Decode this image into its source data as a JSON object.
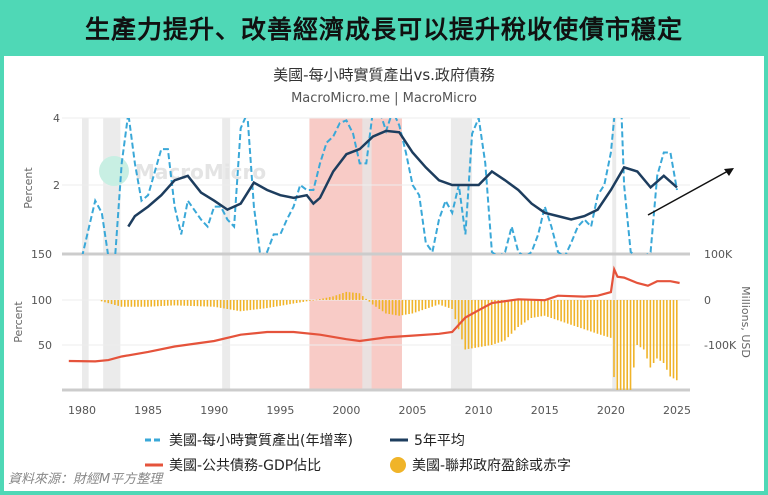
{
  "header": {
    "title": "生產力提升、改善經濟成長可以提升稅收使債市穩定"
  },
  "source": "資料來源：財經M平方整理",
  "watermark": "MacroMicro",
  "colors": {
    "background": "#4fd8b6",
    "productivity": "#3aa8d8",
    "avg5": "#1d3d5e",
    "debt": "#e5533b",
    "deficit": "#f0b429",
    "highlight": "#f4a9a0",
    "recession": "#e6e6e6"
  },
  "chart_data": [
    {
      "type": "line",
      "title": "美國-每小時實質產出vs.政府債務",
      "subtitle": "MacroMicro.me | MacroMicro",
      "ylabel": "Percent",
      "yscale": "log",
      "ylim": [
        1,
        4
      ],
      "yticks": [
        "4",
        "2"
      ],
      "series": [
        {
          "name": "美國-每小時實質產出(年增率)",
          "style": "dashed",
          "x": [
            1980,
            1981,
            1981.5,
            1982,
            1982.5,
            1983,
            1983.5,
            1984,
            1984.5,
            1985,
            1986,
            1986.5,
            1987,
            1987.5,
            1988,
            1989,
            1989.5,
            1990,
            1990.5,
            1991,
            1991.5,
            1992,
            1992.5,
            1993,
            1993.5,
            1994,
            1994.5,
            1995,
            1995.5,
            1996,
            1996.5,
            1997,
            1997.5,
            1998,
            1998.5,
            1999,
            1999.5,
            2000,
            2000.5,
            2001,
            2001.5,
            2002,
            2002.5,
            2003,
            2003.5,
            2004,
            2004.5,
            2005,
            2005.5,
            2006,
            2006.5,
            2007,
            2007.5,
            2008,
            2008.5,
            2009,
            2009.5,
            2010,
            2010.5,
            2011,
            2011.5,
            2012,
            2012.5,
            2013,
            2013.5,
            2014,
            2014.5,
            2015,
            2015.5,
            2016,
            2016.5,
            2017,
            2017.5,
            2018,
            2018.5,
            2019,
            2019.5,
            2020,
            2020.3,
            2020.8,
            2021,
            2021.5,
            2022,
            2022.5,
            2023,
            2023.5,
            2024,
            2024.5,
            2025
          ],
          "y": [
            0.8,
            1.7,
            1.5,
            0.8,
            0.9,
            2.5,
            4.2,
            2.5,
            1.7,
            1.8,
            2.9,
            2.9,
            1.6,
            1.2,
            1.7,
            1.4,
            1.3,
            1.6,
            1.6,
            1.4,
            1.3,
            3.6,
            4.2,
            1.6,
            0.9,
            1.0,
            1.2,
            1.2,
            1.4,
            1.6,
            2.0,
            1.9,
            1.9,
            2.5,
            3.1,
            3.3,
            3.8,
            3.9,
            3.4,
            2.5,
            2.5,
            4.3,
            4.5,
            3.5,
            4.5,
            3.7,
            2.8,
            2.0,
            1.8,
            1.1,
            1.0,
            1.4,
            1.7,
            1.5,
            2.0,
            1.2,
            3.4,
            4.0,
            2.5,
            1.0,
            0.6,
            1.0,
            1.3,
            1.0,
            0.8,
            1.0,
            1.2,
            1.6,
            1.3,
            1.0,
            0.8,
            1.1,
            1.3,
            1.4,
            1.3,
            1.8,
            2.0,
            2.8,
            4.5,
            4.2,
            2.0,
            1.0,
            0.5,
            0.5,
            1.0,
            2.2,
            2.8,
            2.8,
            1.9
          ]
        },
        {
          "name": "5年平均",
          "style": "solid",
          "x": [
            1983.5,
            1984,
            1985,
            1986,
            1987,
            1988,
            1989,
            1990,
            1991,
            1992,
            1993,
            1994,
            1995,
            1996,
            1997,
            1997.5,
            1998,
            1999,
            2000,
            2001,
            2002,
            2003,
            2004,
            2005,
            2006,
            2007,
            2008,
            2009,
            2010,
            2011,
            2012,
            2013,
            2014,
            2015,
            2016,
            2017,
            2018,
            2019,
            2020,
            2021,
            2022,
            2023,
            2024,
            2025
          ],
          "y": [
            1.3,
            1.45,
            1.6,
            1.8,
            2.1,
            2.2,
            1.85,
            1.7,
            1.55,
            1.65,
            2.05,
            1.9,
            1.8,
            1.75,
            1.8,
            1.65,
            1.75,
            2.3,
            2.75,
            2.9,
            3.3,
            3.5,
            3.45,
            2.8,
            2.4,
            2.1,
            2.0,
            2.0,
            2.0,
            2.3,
            2.1,
            1.9,
            1.65,
            1.5,
            1.45,
            1.4,
            1.45,
            1.55,
            1.9,
            2.4,
            2.3,
            1.95,
            2.2,
            1.95
          ]
        }
      ]
    },
    {
      "type": "line+bar",
      "ylabel": "Percent",
      "ylim": [
        0,
        150
      ],
      "yticks": [
        "150",
        "100",
        "50"
      ],
      "y2label": "Millions, USD",
      "y2ticks": [
        "100K",
        "0",
        "-100K"
      ],
      "y2lim": [
        -200000,
        100000
      ],
      "xticks": [
        "1980",
        "1985",
        "1990",
        "1995",
        "2000",
        "2005",
        "2010",
        "2015",
        "2020",
        "2025"
      ],
      "series": [
        {
          "name": "美國-公共債務-GDP佔比",
          "type": "line",
          "x": [
            1979,
            1981,
            1982,
            1983,
            1985,
            1987,
            1990,
            1992,
            1994,
            1996,
            1998,
            2000,
            2001,
            2003,
            2005,
            2007,
            2008,
            2009,
            2010,
            2011,
            2013,
            2015,
            2016,
            2018,
            2019,
            2020,
            2020.25,
            2020.5,
            2021,
            2022,
            2022.8,
            2023.5,
            2024.5,
            2025.2
          ],
          "y": [
            32,
            31.5,
            33,
            37,
            42,
            48,
            54,
            61,
            64,
            64,
            61,
            56,
            54,
            58,
            60,
            62,
            64,
            80,
            88,
            96,
            100,
            99,
            104,
            103,
            104,
            108,
            133,
            125,
            124,
            118,
            115,
            120,
            120,
            118
          ]
        },
        {
          "name": "美國-聯邦政府盈餘或赤字",
          "type": "bar",
          "x": [
            1981.5,
            1983,
            1985,
            1987,
            1990,
            1992,
            1994,
            1996,
            1997,
            1998,
            1999,
            2000,
            2001,
            2002,
            2003,
            2004,
            2005,
            2006,
            2007,
            2008,
            2009,
            2010,
            2011,
            2012,
            2013,
            2014,
            2015,
            2016,
            2017,
            2018,
            2019,
            2020.1,
            2020.3,
            2021.5,
            2022,
            2022.5,
            2023,
            2023.5,
            2024,
            2024.5,
            2025.1
          ],
          "y": [
            -3000,
            -15000,
            -15000,
            -12000,
            -15000,
            -25000,
            -18000,
            -8000,
            -3000,
            2000,
            8000,
            18000,
            15000,
            -10000,
            -30000,
            -35000,
            -30000,
            -20000,
            -10000,
            -20000,
            -110000,
            -105000,
            -100000,
            -90000,
            -60000,
            -40000,
            -35000,
            -45000,
            -55000,
            -65000,
            -75000,
            -85000,
            -200000,
            -200000,
            -100000,
            -110000,
            -150000,
            -130000,
            -140000,
            -170000,
            -180000
          ]
        }
      ]
    }
  ],
  "shading": {
    "recessions": [
      [
        1980,
        1980.5
      ],
      [
        1981.6,
        1982.9
      ],
      [
        1990.6,
        1991.2
      ],
      [
        2001.2,
        2001.9
      ],
      [
        2007.9,
        2009.5
      ],
      [
        2020.1,
        2020.4
      ]
    ],
    "highlight": [
      1997.2,
      2004.2
    ]
  }
}
